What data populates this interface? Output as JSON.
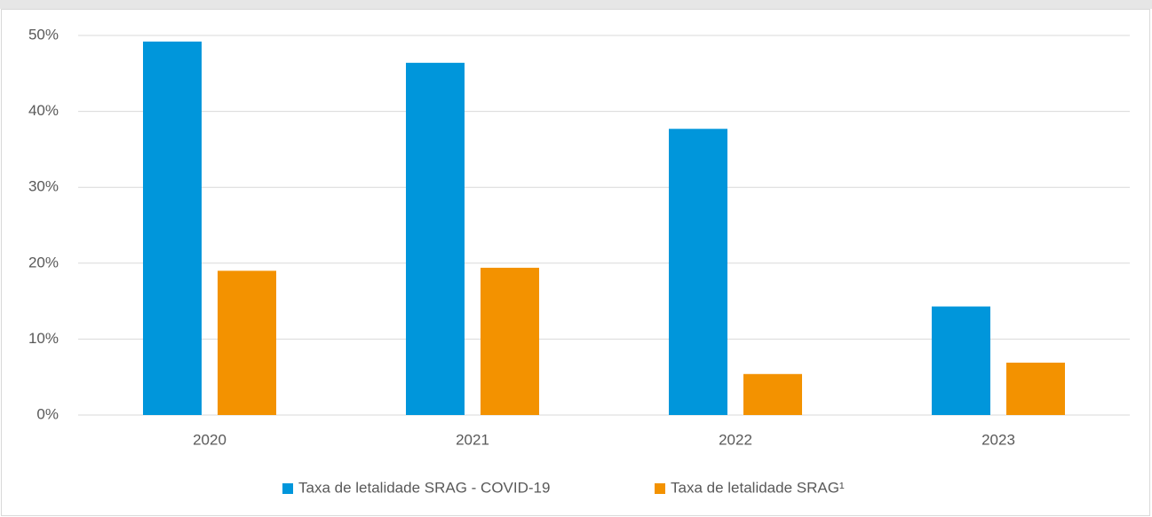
{
  "chart_data": {
    "type": "bar",
    "categories": [
      "2020",
      "2021",
      "2022",
      "2023"
    ],
    "series": [
      {
        "name": "Taxa de letalidade SRAG - COVID-19",
        "color": "#0096db",
        "values": [
          49.2,
          46.4,
          37.7,
          14.3
        ]
      },
      {
        "name": "Taxa de letalidade SRAG¹",
        "color": "#f39200",
        "values": [
          19.0,
          19.4,
          5.4,
          6.9
        ]
      }
    ],
    "ylim": [
      0,
      50
    ],
    "yticks": [
      {
        "value": 0,
        "label": "0%"
      },
      {
        "value": 10,
        "label": "10%"
      },
      {
        "value": 20,
        "label": "20%"
      },
      {
        "value": 30,
        "label": "30%"
      },
      {
        "value": 40,
        "label": "40%"
      },
      {
        "value": 50,
        "label": "50%"
      }
    ],
    "grid": true,
    "legend": "bottom"
  }
}
